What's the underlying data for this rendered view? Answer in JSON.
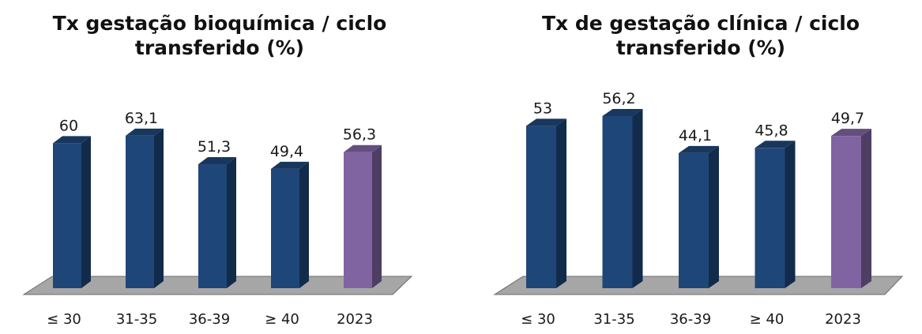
{
  "chart_data": [
    {
      "type": "bar",
      "title_lines": [
        "Tx gestação bioquímica / ciclo",
        "transferido (%)"
      ],
      "categories": [
        "≤ 30",
        "31-35",
        "36-39",
        "≥ 40",
        "2023"
      ],
      "values": [
        60,
        63.1,
        51.3,
        49.4,
        56.3
      ],
      "value_labels": [
        "60",
        "63,1",
        "51,3",
        "49,4",
        "56,3"
      ],
      "colors": {
        "bar": "#1f4679",
        "highlight": "#8064a2",
        "floor": "#a6a6a6"
      }
    },
    {
      "type": "bar",
      "title_lines": [
        "Tx de gestação clínica / ciclo",
        "transferido (%)"
      ],
      "categories": [
        "≤ 30",
        "31-35",
        "36-39",
        "≥ 40",
        "2023"
      ],
      "values": [
        53,
        56.2,
        44.1,
        45.8,
        49.7
      ],
      "value_labels": [
        "53",
        "56,2",
        "44,1",
        "45,8",
        "49,7"
      ],
      "colors": {
        "bar": "#1f4679",
        "highlight": "#8064a2",
        "floor": "#a6a6a6"
      }
    }
  ]
}
